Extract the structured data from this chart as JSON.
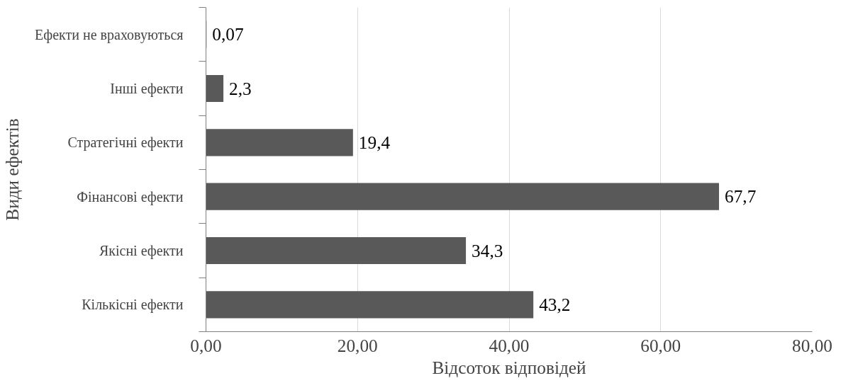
{
  "chart_data": {
    "type": "bar",
    "orientation": "horizontal",
    "xlabel": "Відсоток відповідей",
    "ylabel": "Види ефектів",
    "categories": [
      "Ефекти не враховуються",
      "Інші ефекти",
      "Стратегічні ефекти",
      "Фінансові ефекти",
      "Якісні ефекти",
      "Кількісні ефекти"
    ],
    "values": [
      0.07,
      2.3,
      19.4,
      67.7,
      34.3,
      43.2
    ],
    "value_labels": [
      "0,07",
      "2,3",
      "19,4",
      "67,7",
      "34,3",
      "43,2"
    ],
    "color": "#595959",
    "xlim": [
      0,
      80
    ],
    "xticks": [
      {
        "value": 0,
        "label": "0,00"
      },
      {
        "value": 20,
        "label": "20,00"
      },
      {
        "value": 40,
        "label": "40,00"
      },
      {
        "value": 60,
        "label": "60,00"
      },
      {
        "value": 80,
        "label": "80,00"
      }
    ],
    "grid": "x"
  }
}
